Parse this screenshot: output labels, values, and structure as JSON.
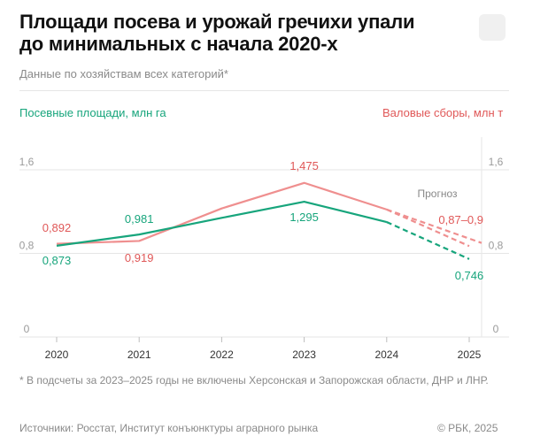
{
  "title_line1": "Площади посева и урожай гречихи упали",
  "title_line2": "до минимальных с начала 2020-х",
  "subtitle": "Данные по хозяйствам всех категорий*",
  "axis_left_label": "Посевные площади, млн га",
  "axis_right_label": "Валовые сборы, млн т",
  "forecast_label": "Прогноз",
  "footnote": "* В подсчеты за 2023–2025 годы не включены Херсонская и Запорожская области, ДНР и ЛНР.",
  "sources": "Источники: Росстат, Институт конъюнктуры аграрного рынка",
  "copyright": "© РБК, 2025",
  "colors": {
    "area": "#17a57c",
    "harvest": "#ef8f8f",
    "harvest_text": "#e05858",
    "grid": "#e6e6e6"
  },
  "chart_data": {
    "type": "line",
    "categories": [
      "2020",
      "2021",
      "2022",
      "2023",
      "2024",
      "2025"
    ],
    "ylim": [
      0,
      1.6
    ],
    "y_ticks": [
      "0",
      "0,8",
      "1,6"
    ],
    "series": [
      {
        "name": "Посевные площади, млн га",
        "values": [
          0.873,
          0.981,
          1.14,
          1.295,
          1.1,
          0.746
        ],
        "forecast_from_index": 5,
        "labels": [
          "0,873",
          "0,981",
          "",
          "1,295",
          "",
          "0,746"
        ]
      },
      {
        "name": "Валовые сборы, млн т",
        "values": [
          0.892,
          0.919,
          1.23,
          1.475,
          1.22,
          0.87
        ],
        "forecast_upper": 0.9,
        "forecast_from_index": 5,
        "labels": [
          "0,892",
          "0,919",
          "",
          "1,475",
          "",
          "0,87–0,9"
        ]
      }
    ]
  }
}
